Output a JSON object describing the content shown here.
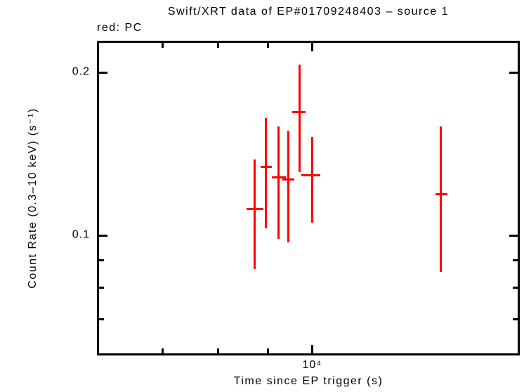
{
  "legend": {
    "text": "red: PC",
    "color": "#ff0000"
  },
  "colors": {
    "background": "#ffffff",
    "axis": "#000000",
    "pc_mode": "#ff0000"
  },
  "chart_data": {
    "type": "scatter",
    "title": "Swift/XRT data of EP#01709248403 – source 1",
    "xlabel": "Time since EP trigger (s)",
    "ylabel": "Count Rate (0.3–10 keV) (s⁻¹)",
    "xscale": "log",
    "yscale": "log",
    "xlim": [
      5990,
      16400
    ],
    "ylim": [
      0.06,
      0.229
    ],
    "grid": false,
    "legend_position": "top-left",
    "x_ticks": {
      "major": [
        {
          "value": 10000,
          "label": "10⁴"
        }
      ],
      "minor": [
        7000,
        8000,
        9000
      ]
    },
    "y_ticks": {
      "major": [
        {
          "value": 0.2,
          "label": "0.2"
        },
        {
          "value": 0.1,
          "label": "0.1"
        }
      ],
      "minor": [
        0.09,
        0.08,
        0.07
      ]
    },
    "series": [
      {
        "name": "PC",
        "color": "#ff0000",
        "marker": "cross-error-bars",
        "points": [
          {
            "t": 8720,
            "t_lo": 8560,
            "t_hi": 8900,
            "rate": 0.112,
            "rate_lo": 0.0866,
            "rate_hi": 0.138
          },
          {
            "t": 8960,
            "t_lo": 8850,
            "t_hi": 9090,
            "rate": 0.134,
            "rate_lo": 0.103,
            "rate_hi": 0.165
          },
          {
            "t": 9230,
            "t_lo": 9080,
            "t_hi": 9390,
            "rate": 0.128,
            "rate_lo": 0.0985,
            "rate_hi": 0.159
          },
          {
            "t": 9450,
            "t_lo": 9310,
            "t_hi": 9590,
            "rate": 0.127,
            "rate_lo": 0.097,
            "rate_hi": 0.156
          },
          {
            "t": 9700,
            "t_lo": 9540,
            "t_hi": 9840,
            "rate": 0.169,
            "rate_lo": 0.131,
            "rate_hi": 0.207
          },
          {
            "t": 10000,
            "t_lo": 9740,
            "t_hi": 10200,
            "rate": 0.129,
            "rate_lo": 0.1055,
            "rate_hi": 0.152
          },
          {
            "t": 13590,
            "t_lo": 13410,
            "t_hi": 13800,
            "rate": 0.119,
            "rate_lo": 0.0856,
            "rate_hi": 0.159
          }
        ]
      }
    ]
  }
}
